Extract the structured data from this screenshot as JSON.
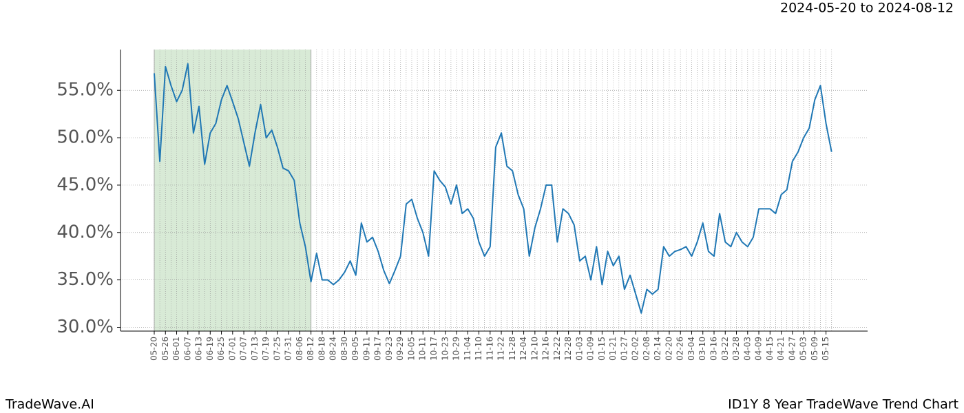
{
  "chart_data": {
    "type": "line",
    "title": "ID1Y 8 Year TradeWave Trend Chart",
    "subtitle": "2024-05-20 to 2024-08-12",
    "brand": "TradeWave.AI",
    "categories": [
      "05-20",
      null,
      "05-26",
      null,
      "06-01",
      null,
      "06-07",
      null,
      "06-13",
      null,
      "06-19",
      null,
      "06-25",
      null,
      "07-01",
      null,
      "07-07",
      null,
      "07-13",
      null,
      "07-19",
      null,
      "07-25",
      null,
      "07-31",
      null,
      "08-06",
      null,
      "08-12",
      null,
      "08-18",
      null,
      "08-24",
      null,
      "08-30",
      null,
      "09-05",
      null,
      "09-11",
      null,
      "09-17",
      null,
      "09-23",
      null,
      "09-29",
      null,
      "10-05",
      null,
      "10-11",
      null,
      "10-17",
      null,
      "10-23",
      null,
      "10-29",
      null,
      "11-04",
      null,
      "11-10",
      null,
      "11-16",
      null,
      "11-22",
      null,
      "11-28",
      null,
      "12-04",
      null,
      "12-10",
      null,
      "12-16",
      null,
      "12-22",
      null,
      "12-28",
      null,
      "01-03",
      null,
      "01-09",
      null,
      "01-15",
      null,
      "01-21",
      null,
      "01-27",
      null,
      "02-02",
      null,
      "02-08",
      null,
      "02-14",
      null,
      "02-20",
      null,
      "02-26",
      null,
      "03-04",
      null,
      "03-10",
      null,
      "03-16",
      null,
      "03-22",
      null,
      "03-28",
      null,
      "04-03",
      null,
      "04-09",
      null,
      "04-15",
      null,
      "04-21",
      null,
      "04-27",
      null,
      "05-03",
      null,
      "05-09",
      null,
      "05-15",
      null
    ],
    "values": [
      56.8,
      47.5,
      57.5,
      55.5,
      53.8,
      55.0,
      57.8,
      50.5,
      53.3,
      47.2,
      50.5,
      51.5,
      54.0,
      55.5,
      53.8,
      52.0,
      49.5,
      47.0,
      50.5,
      53.5,
      50.0,
      50.8,
      49.0,
      46.8,
      46.5,
      45.5,
      41.0,
      38.5,
      34.8,
      37.8,
      35.0,
      35.0,
      34.5,
      35.0,
      35.8,
      37.0,
      35.5,
      41.0,
      39.0,
      39.5,
      38.0,
      36.0,
      34.6,
      36.0,
      37.5,
      43.0,
      43.5,
      41.5,
      40.0,
      37.5,
      46.5,
      45.5,
      44.8,
      43.0,
      45.0,
      42.0,
      42.5,
      41.5,
      39.0,
      37.5,
      38.5,
      49.0,
      50.5,
      47.0,
      46.5,
      44.0,
      42.5,
      37.5,
      40.5,
      42.5,
      45.0,
      45.0,
      39.0,
      42.5,
      42.0,
      40.8,
      37.0,
      37.5,
      35.0,
      38.5,
      34.5,
      38.0,
      36.5,
      37.5,
      34.0,
      35.5,
      33.5,
      31.5,
      34.0,
      33.5,
      34.0,
      38.5,
      37.5,
      38.0,
      38.2,
      38.5,
      37.5,
      39.0,
      41.0,
      38.0,
      37.5,
      42.0,
      39.0,
      38.5,
      40.0,
      39.0,
      38.5,
      39.5,
      42.5,
      42.5,
      42.5,
      42.0,
      44.0,
      44.5,
      47.5,
      48.5,
      50.0,
      51.0,
      54.0,
      55.5,
      51.5,
      48.5
    ],
    "color": "#1f77b4",
    "ylim": [
      29.6,
      59.3
    ],
    "yticks": [
      {
        "value": 30,
        "label": "30.0%"
      },
      {
        "value": 35,
        "label": "35.0%"
      },
      {
        "value": 40,
        "label": "40.0%"
      },
      {
        "value": 45,
        "label": "45.0%"
      },
      {
        "value": 50,
        "label": "50.0%"
      },
      {
        "value": 55,
        "label": "55.0%"
      }
    ],
    "grid": true,
    "shade": {
      "from": "05-20",
      "to": "08-12",
      "color": "#d8ead6"
    }
  }
}
